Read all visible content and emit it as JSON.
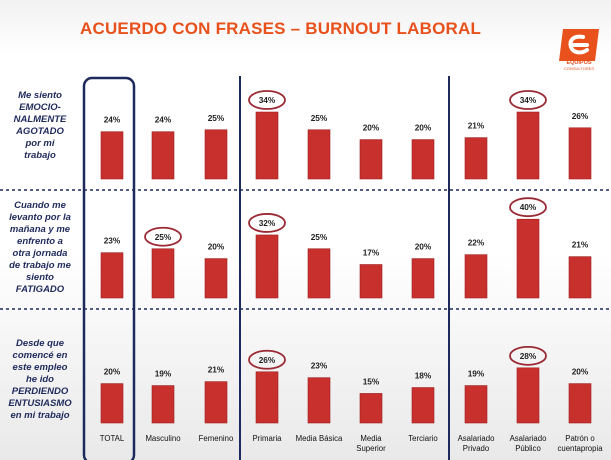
{
  "title": "ACUERDO CON FRASES – BURNOUT LABORAL",
  "logo": {
    "name": "EQUIPOS",
    "sub": "CONSULTORES"
  },
  "colors": {
    "bar": "#c8302d",
    "title": "#e8511c",
    "frame": "#1f2a5c",
    "highlight": "#9b2a35"
  },
  "chart_data": {
    "type": "bar",
    "categories": [
      "TOTAL",
      "Masculino",
      "Femenino",
      "Primaria",
      "Media Básica",
      "Media Superior",
      "Terciario",
      "Asalariado Privado",
      "Asalariado Público",
      "Patrón o cuentapropia"
    ],
    "category_lines": [
      [
        "TOTAL"
      ],
      [
        "Masculino"
      ],
      [
        "Femenino"
      ],
      [
        "Primaria"
      ],
      [
        "Media Básica"
      ],
      [
        "Media",
        "Superior"
      ],
      [
        "Terciario"
      ],
      [
        "Asalariado",
        "Privado"
      ],
      [
        "Asalariado",
        "Público"
      ],
      [
        "Patrón o",
        "cuentapropia"
      ]
    ],
    "rows": [
      {
        "label_lines": [
          "Me siento",
          "EMOCIO-",
          "NALMENTE",
          "AGOTADO",
          "por mi",
          "trabajo"
        ],
        "values": [
          24,
          24,
          25,
          34,
          25,
          20,
          20,
          21,
          34,
          26
        ],
        "labels": [
          "24%",
          "24%",
          "25%",
          "34%",
          "25%",
          "20%",
          "20%",
          "21%",
          "34%",
          "26%"
        ],
        "highlighted": [
          3,
          8
        ]
      },
      {
        "label_lines": [
          "Cuando me",
          "levanto por la",
          "mañana y me",
          "enfrento a",
          "otra jornada",
          "de trabajo  me",
          "siento",
          "FATIGADO"
        ],
        "values": [
          23,
          25,
          20,
          32,
          25,
          17,
          20,
          22,
          40,
          21
        ],
        "labels": [
          "23%",
          "25%",
          "20%",
          "32%",
          "25%",
          "17%",
          "20%",
          "22%",
          "40%",
          "21%"
        ],
        "highlighted": [
          1,
          3,
          8
        ]
      },
      {
        "label_lines": [
          "Desde que",
          "comencé en",
          "este empleo",
          "he ido",
          "PERDIENDO",
          "ENTUSIASMO",
          "en mi trabajo"
        ],
        "values": [
          20,
          19,
          21,
          26,
          23,
          15,
          18,
          19,
          28,
          20
        ],
        "labels": [
          "20%",
          "19%",
          "21%",
          "26%",
          "23%",
          "15%",
          "18%",
          "19%",
          "28%",
          "20%"
        ],
        "highlighted": [
          3,
          8
        ]
      }
    ]
  }
}
